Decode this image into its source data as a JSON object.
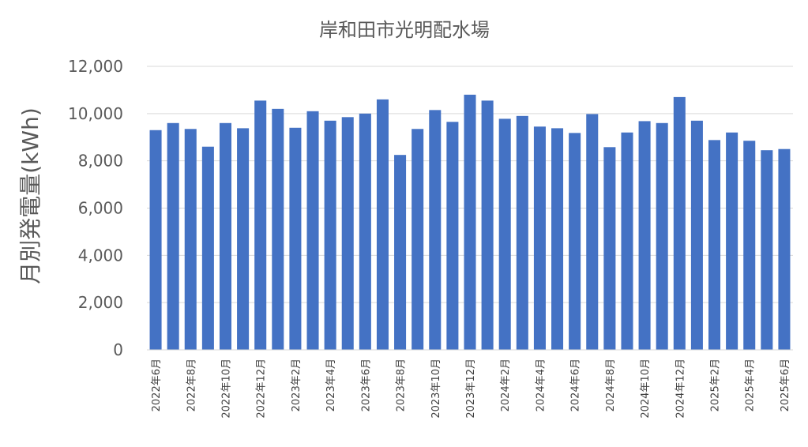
{
  "chart_data": {
    "type": "bar",
    "title": "岸和田市光明配水場",
    "xlabel": "",
    "ylabel": "月別発電量(kWh)",
    "ylim": [
      0,
      12000
    ],
    "yticks": [
      "0",
      "2,000",
      "4,000",
      "6,000",
      "8,000",
      "10,000",
      "12,000"
    ],
    "grid": true,
    "legend": "none",
    "bar_color": "#4472c4",
    "categories": [
      "2022年6月",
      "2022年7月",
      "2022年8月",
      "2022年9月",
      "2022年10月",
      "2022年11月",
      "2022年12月",
      "2023年1月",
      "2023年2月",
      "2023年3月",
      "2023年4月",
      "2023年5月",
      "2023年6月",
      "2023年7月",
      "2023年8月",
      "2023年9月",
      "2023年10月",
      "2023年11月",
      "2023年12月",
      "2024年1月",
      "2024年2月",
      "2024年3月",
      "2024年4月",
      "2024年5月",
      "2024年6月",
      "2024年7月",
      "2024年8月",
      "2024年9月",
      "2024年10月",
      "2024年11月",
      "2024年12月",
      "2025年1月",
      "2025年2月",
      "2025年3月",
      "2025年4月",
      "2025年5月",
      "2025年6月"
    ],
    "tick_labels_shown": [
      "2022年6月",
      "2022年8月",
      "2022年10月",
      "2022年12月",
      "2023年2月",
      "2023年4月",
      "2023年6月",
      "2023年8月",
      "2023年10月",
      "2023年12月",
      "2024年2月",
      "2024年4月",
      "2024年6月",
      "2024年8月",
      "2024年10月",
      "2024年12月",
      "2025年2月",
      "2025年4月",
      "2025年6月"
    ],
    "values": [
      9300,
      9600,
      9350,
      8600,
      9600,
      9380,
      10550,
      10200,
      9400,
      10100,
      9700,
      9850,
      10000,
      10600,
      8250,
      9350,
      10150,
      9650,
      10800,
      10550,
      9780,
      9900,
      9450,
      9380,
      9180,
      9980,
      8580,
      9200,
      9680,
      9600,
      10700,
      9700,
      8880,
      9200,
      8850,
      8450,
      8500
    ]
  }
}
